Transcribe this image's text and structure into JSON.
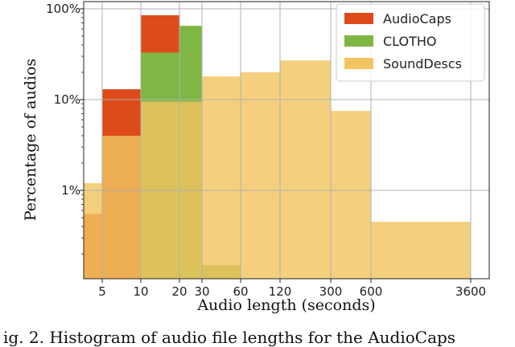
{
  "chart_data": {
    "type": "bar",
    "title": "",
    "xlabel": "Audio length (seconds)",
    "ylabel": "Percentage of audios",
    "y_scale": "log",
    "xlim": [
      0,
      3600
    ],
    "ylim_percent": [
      0.2,
      100
    ],
    "x_ticks": [
      "5",
      "10",
      "20",
      "30",
      "60",
      "120",
      "300",
      "600",
      "3600"
    ],
    "y_ticks": [
      "100%",
      "10%",
      "1%"
    ],
    "grid": true,
    "legend_position": "top-right",
    "colors": {
      "AudioCaps": "#dd4b1a",
      "CLOTHO": "#7fb644",
      "SoundDescs": "#f2c560"
    },
    "bins": [
      "0-5",
      "5-10",
      "10-20",
      "20-30",
      "30-60",
      "60-120",
      "120-300",
      "300-600",
      "600-3600"
    ],
    "series": [
      {
        "name": "AudioCaps",
        "values": [
          0.55,
          13,
          85,
          null,
          null,
          null,
          null,
          null,
          null
        ]
      },
      {
        "name": "CLOTHO",
        "values": [
          null,
          null,
          33,
          65,
          0.15,
          null,
          null,
          null,
          null
        ]
      },
      {
        "name": "SoundDescs",
        "values": [
          1.2,
          4,
          9.5,
          9.5,
          18,
          20,
          27,
          7.5,
          0.45
        ]
      }
    ]
  },
  "caption": "ig. 2. Histogram of audio file lengths for the AudioCaps"
}
